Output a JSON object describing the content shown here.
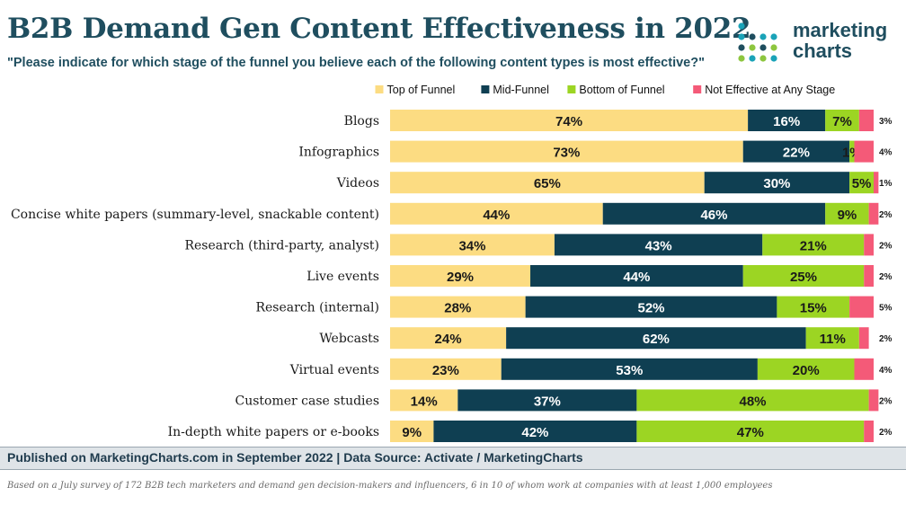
{
  "header": {
    "title": "B2B Demand Gen Content Effectiveness in 2022",
    "subtitle": "\"Please indicate for which stage of the funnel you believe each of the following content types is most effective?\""
  },
  "logo": {
    "line1": "marketing",
    "line2": "charts"
  },
  "footer": {
    "source": "Published on MarketingCharts.com in September 2022 | Data Source: Activate / MarketingCharts",
    "note": "Based on a July survey of 172 B2B tech marketers and demand gen decision-makers and influencers, 6 in 10 of whom work at companies with at least 1,000 employees"
  },
  "chart_data": {
    "type": "bar",
    "orientation": "horizontal",
    "stacked": true,
    "legend_position": "top-right",
    "grid": false,
    "xlim": [
      0,
      100
    ],
    "categories": [
      "Blogs",
      "Infographics",
      "Videos",
      "Concise white papers (summary-level, snackable content)",
      "Research (third-party, analyst)",
      "Live events",
      "Research (internal)",
      "Webcasts",
      "Virtual events",
      "Customer case studies",
      "In-depth white papers or e-books"
    ],
    "series": [
      {
        "name": "Top of Funnel",
        "color": "#fcdc82",
        "values": [
          74,
          73,
          65,
          44,
          34,
          29,
          28,
          24,
          23,
          14,
          9
        ]
      },
      {
        "name": "Mid-Funnel",
        "color": "#0f3f52",
        "values": [
          16,
          22,
          30,
          46,
          43,
          44,
          52,
          62,
          53,
          37,
          42
        ]
      },
      {
        "name": "Bottom of Funnel",
        "color": "#9cd523",
        "values": [
          7,
          1,
          5,
          9,
          21,
          25,
          15,
          11,
          20,
          48,
          47
        ]
      },
      {
        "name": "Not Effective at Any Stage",
        "color": "#f45a78",
        "values": [
          3,
          4,
          1,
          2,
          2,
          2,
          5,
          2,
          4,
          2,
          2
        ]
      }
    ]
  }
}
